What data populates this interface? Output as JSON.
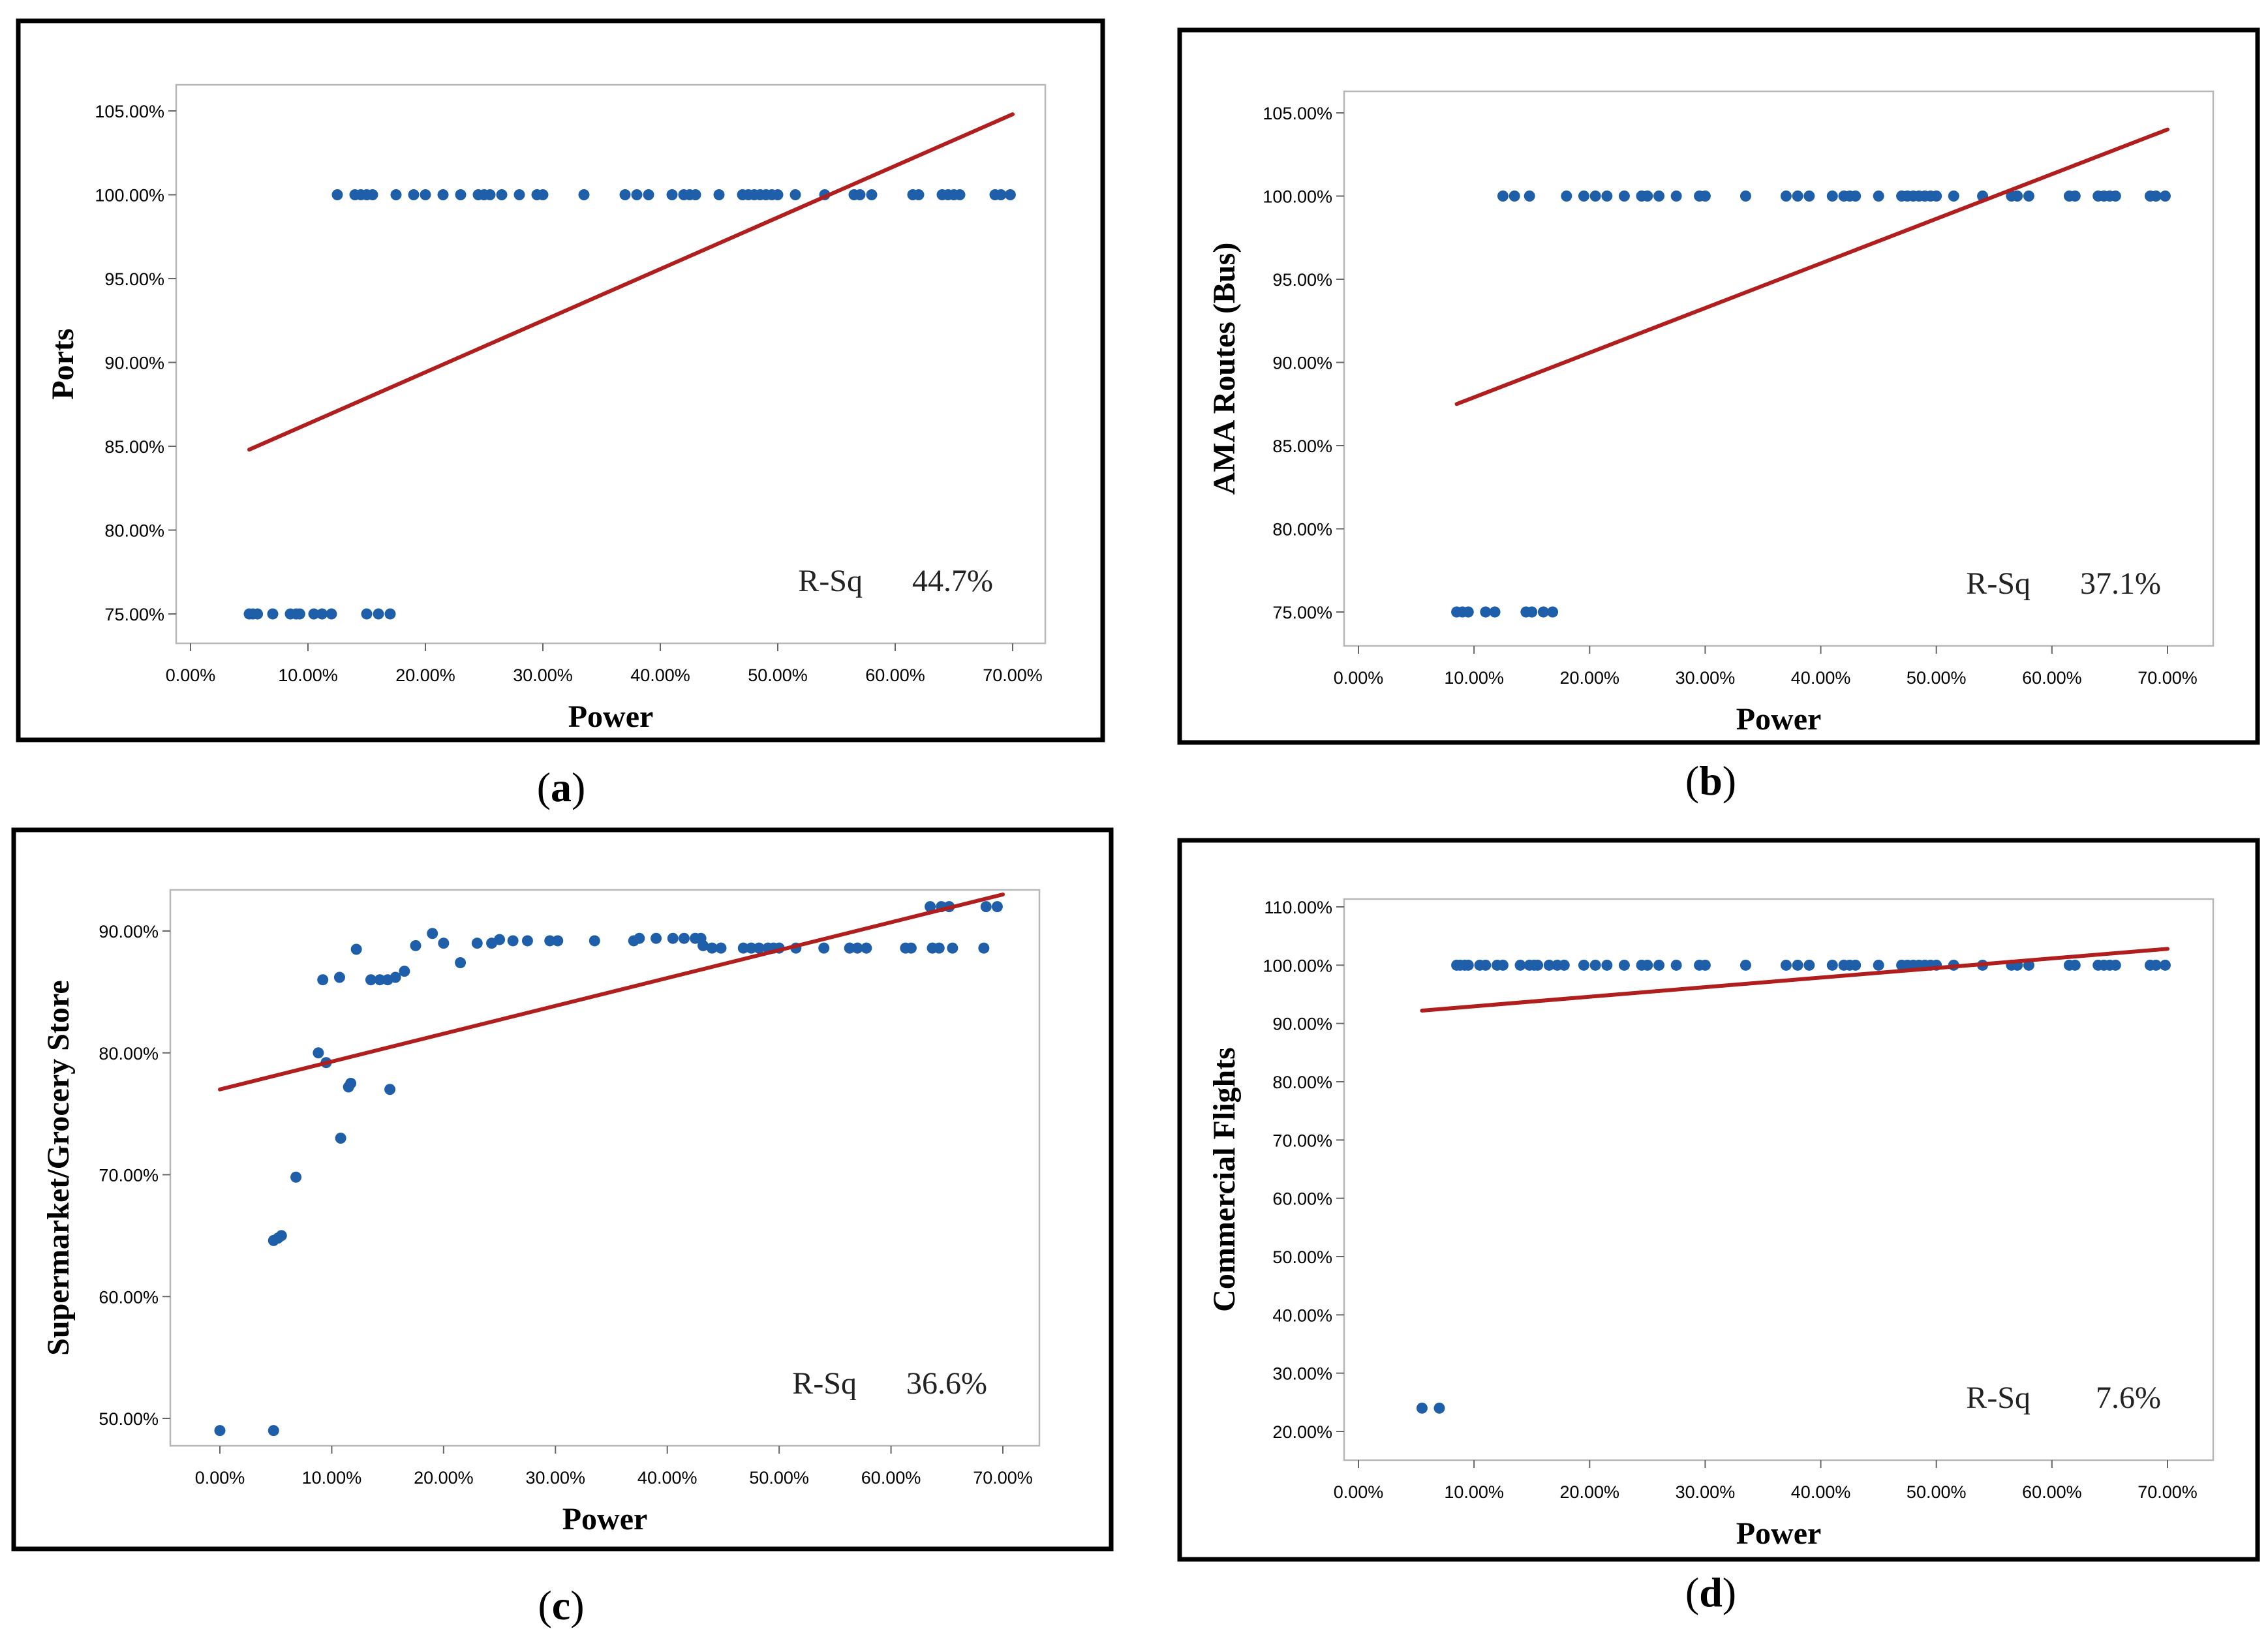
{
  "figure": {
    "captions": [
      "(a)",
      "(b)",
      "(c)",
      "(d)"
    ],
    "caption_letters": [
      "a",
      "b",
      "c",
      "d"
    ]
  },
  "chart_data": [
    {
      "type": "scatter",
      "panel": "a",
      "xlabel": "Power",
      "ylabel": "Ports",
      "annotation_label": "R-Sq",
      "annotation_value": "44.7%",
      "xlim": [
        0,
        0.7
      ],
      "ylim": [
        0.75,
        1.05
      ],
      "xticks": [
        0,
        0.1,
        0.2,
        0.3,
        0.4,
        0.5,
        0.6,
        0.7
      ],
      "xtick_labels": [
        "0.00%",
        "10.00%",
        "20.00%",
        "30.00%",
        "40.00%",
        "50.00%",
        "60.00%",
        "70.00%"
      ],
      "yticks": [
        0.75,
        0.8,
        0.85,
        0.9,
        0.95,
        1.0,
        1.05
      ],
      "ytick_labels": [
        "75.00%",
        "80.00%",
        "85.00%",
        "90.00%",
        "95.00%",
        "100.00%",
        "105.00%"
      ],
      "fit_line": {
        "x": [
          0.05,
          0.7
        ],
        "y": [
          0.848,
          1.048
        ]
      },
      "points": [
        [
          0.05,
          0.75
        ],
        [
          0.053,
          0.75
        ],
        [
          0.057,
          0.75
        ],
        [
          0.07,
          0.75
        ],
        [
          0.085,
          0.75
        ],
        [
          0.09,
          0.75
        ],
        [
          0.093,
          0.75
        ],
        [
          0.105,
          0.75
        ],
        [
          0.112,
          0.75
        ],
        [
          0.12,
          0.75
        ],
        [
          0.15,
          0.75
        ],
        [
          0.16,
          0.75
        ],
        [
          0.17,
          0.75
        ],
        [
          0.125,
          1.0
        ],
        [
          0.14,
          1.0
        ],
        [
          0.145,
          1.0
        ],
        [
          0.15,
          1.0
        ],
        [
          0.155,
          1.0
        ],
        [
          0.175,
          1.0
        ],
        [
          0.19,
          1.0
        ],
        [
          0.2,
          1.0
        ],
        [
          0.215,
          1.0
        ],
        [
          0.23,
          1.0
        ],
        [
          0.245,
          1.0
        ],
        [
          0.25,
          1.0
        ],
        [
          0.255,
          1.0
        ],
        [
          0.265,
          1.0
        ],
        [
          0.28,
          1.0
        ],
        [
          0.295,
          1.0
        ],
        [
          0.3,
          1.0
        ],
        [
          0.335,
          1.0
        ],
        [
          0.37,
          1.0
        ],
        [
          0.38,
          1.0
        ],
        [
          0.39,
          1.0
        ],
        [
          0.41,
          1.0
        ],
        [
          0.42,
          1.0
        ],
        [
          0.425,
          1.0
        ],
        [
          0.43,
          1.0
        ],
        [
          0.45,
          1.0
        ],
        [
          0.47,
          1.0
        ],
        [
          0.475,
          1.0
        ],
        [
          0.48,
          1.0
        ],
        [
          0.485,
          1.0
        ],
        [
          0.49,
          1.0
        ],
        [
          0.495,
          1.0
        ],
        [
          0.5,
          1.0
        ],
        [
          0.515,
          1.0
        ],
        [
          0.54,
          1.0
        ],
        [
          0.565,
          1.0
        ],
        [
          0.57,
          1.0
        ],
        [
          0.58,
          1.0
        ],
        [
          0.615,
          1.0
        ],
        [
          0.62,
          1.0
        ],
        [
          0.64,
          1.0
        ],
        [
          0.645,
          1.0
        ],
        [
          0.65,
          1.0
        ],
        [
          0.655,
          1.0
        ],
        [
          0.685,
          1.0
        ],
        [
          0.69,
          1.0
        ],
        [
          0.698,
          1.0
        ]
      ]
    },
    {
      "type": "scatter",
      "panel": "b",
      "xlabel": "Power",
      "ylabel": "AMA Routes (Bus)",
      "annotation_label": "R-Sq",
      "annotation_value": "37.1%",
      "xlim": [
        0,
        0.7
      ],
      "ylim": [
        0.75,
        1.05
      ],
      "xticks": [
        0,
        0.1,
        0.2,
        0.3,
        0.4,
        0.5,
        0.6,
        0.7
      ],
      "xtick_labels": [
        "0.00%",
        "10.00%",
        "20.00%",
        "30.00%",
        "40.00%",
        "50.00%",
        "60.00%",
        "70.00%"
      ],
      "yticks": [
        0.75,
        0.8,
        0.85,
        0.9,
        0.95,
        1.0,
        1.05
      ],
      "ytick_labels": [
        "75.00%",
        "80.00%",
        "85.00%",
        "90.00%",
        "95.00%",
        "100.00%",
        "105.00%"
      ],
      "fit_line": {
        "x": [
          0.085,
          0.7
        ],
        "y": [
          0.875,
          1.04
        ]
      },
      "points": [
        [
          0.085,
          0.75
        ],
        [
          0.09,
          0.75
        ],
        [
          0.095,
          0.75
        ],
        [
          0.11,
          0.75
        ],
        [
          0.118,
          0.75
        ],
        [
          0.145,
          0.75
        ],
        [
          0.15,
          0.75
        ],
        [
          0.16,
          0.75
        ],
        [
          0.168,
          0.75
        ],
        [
          0.125,
          1.0
        ],
        [
          0.135,
          1.0
        ],
        [
          0.148,
          1.0
        ],
        [
          0.18,
          1.0
        ],
        [
          0.195,
          1.0
        ],
        [
          0.205,
          1.0
        ],
        [
          0.215,
          1.0
        ],
        [
          0.23,
          1.0
        ],
        [
          0.245,
          1.0
        ],
        [
          0.25,
          1.0
        ],
        [
          0.26,
          1.0
        ],
        [
          0.275,
          1.0
        ],
        [
          0.295,
          1.0
        ],
        [
          0.3,
          1.0
        ],
        [
          0.335,
          1.0
        ],
        [
          0.37,
          1.0
        ],
        [
          0.38,
          1.0
        ],
        [
          0.39,
          1.0
        ],
        [
          0.41,
          1.0
        ],
        [
          0.42,
          1.0
        ],
        [
          0.425,
          1.0
        ],
        [
          0.43,
          1.0
        ],
        [
          0.45,
          1.0
        ],
        [
          0.47,
          1.0
        ],
        [
          0.475,
          1.0
        ],
        [
          0.48,
          1.0
        ],
        [
          0.485,
          1.0
        ],
        [
          0.49,
          1.0
        ],
        [
          0.495,
          1.0
        ],
        [
          0.5,
          1.0
        ],
        [
          0.515,
          1.0
        ],
        [
          0.54,
          1.0
        ],
        [
          0.565,
          1.0
        ],
        [
          0.57,
          1.0
        ],
        [
          0.58,
          1.0
        ],
        [
          0.615,
          1.0
        ],
        [
          0.62,
          1.0
        ],
        [
          0.64,
          1.0
        ],
        [
          0.645,
          1.0
        ],
        [
          0.65,
          1.0
        ],
        [
          0.655,
          1.0
        ],
        [
          0.685,
          1.0
        ],
        [
          0.69,
          1.0
        ],
        [
          0.698,
          1.0
        ]
      ]
    },
    {
      "type": "scatter",
      "panel": "c",
      "xlabel": "Power",
      "ylabel": "Supermarket/Grocery Store",
      "annotation_label": "R-Sq",
      "annotation_value": "36.6%",
      "xlim": [
        0,
        0.7
      ],
      "ylim": [
        0.49,
        0.92
      ],
      "xticks": [
        0,
        0.1,
        0.2,
        0.3,
        0.4,
        0.5,
        0.6,
        0.7
      ],
      "xtick_labels": [
        "0.00%",
        "10.00%",
        "20.00%",
        "30.00%",
        "40.00%",
        "50.00%",
        "60.00%",
        "70.00%"
      ],
      "yticks": [
        0.5,
        0.6,
        0.7,
        0.8,
        0.9
      ],
      "ytick_labels": [
        "50.00%",
        "60.00%",
        "70.00%",
        "80.00%",
        "90.00%"
      ],
      "fit_line": {
        "x": [
          0.0,
          0.7
        ],
        "y": [
          0.77,
          0.93
        ]
      },
      "points": [
        [
          0.0,
          0.49
        ],
        [
          0.048,
          0.49
        ],
        [
          0.048,
          0.646
        ],
        [
          0.052,
          0.648
        ],
        [
          0.055,
          0.65
        ],
        [
          0.068,
          0.698
        ],
        [
          0.088,
          0.8
        ],
        [
          0.092,
          0.86
        ],
        [
          0.095,
          0.792
        ],
        [
          0.107,
          0.862
        ],
        [
          0.108,
          0.73
        ],
        [
          0.115,
          0.772
        ],
        [
          0.117,
          0.775
        ],
        [
          0.122,
          0.885
        ],
        [
          0.135,
          0.86
        ],
        [
          0.143,
          0.86
        ],
        [
          0.15,
          0.86
        ],
        [
          0.152,
          0.77
        ],
        [
          0.157,
          0.862
        ],
        [
          0.165,
          0.867
        ],
        [
          0.175,
          0.888
        ],
        [
          0.19,
          0.898
        ],
        [
          0.2,
          0.89
        ],
        [
          0.215,
          0.874
        ],
        [
          0.23,
          0.89
        ],
        [
          0.243,
          0.89
        ],
        [
          0.25,
          0.893
        ],
        [
          0.262,
          0.892
        ],
        [
          0.275,
          0.892
        ],
        [
          0.295,
          0.892
        ],
        [
          0.302,
          0.892
        ],
        [
          0.335,
          0.892
        ],
        [
          0.37,
          0.892
        ],
        [
          0.375,
          0.894
        ],
        [
          0.39,
          0.894
        ],
        [
          0.405,
          0.894
        ],
        [
          0.415,
          0.894
        ],
        [
          0.425,
          0.894
        ],
        [
          0.43,
          0.894
        ],
        [
          0.432,
          0.888
        ],
        [
          0.44,
          0.886
        ],
        [
          0.448,
          0.886
        ],
        [
          0.468,
          0.886
        ],
        [
          0.475,
          0.886
        ],
        [
          0.482,
          0.886
        ],
        [
          0.49,
          0.886
        ],
        [
          0.495,
          0.886
        ],
        [
          0.5,
          0.886
        ],
        [
          0.515,
          0.886
        ],
        [
          0.54,
          0.886
        ],
        [
          0.563,
          0.886
        ],
        [
          0.57,
          0.886
        ],
        [
          0.578,
          0.886
        ],
        [
          0.613,
          0.886
        ],
        [
          0.618,
          0.886
        ],
        [
          0.635,
          0.92
        ],
        [
          0.637,
          0.886
        ],
        [
          0.643,
          0.886
        ],
        [
          0.645,
          0.92
        ],
        [
          0.652,
          0.92
        ],
        [
          0.655,
          0.886
        ],
        [
          0.683,
          0.886
        ],
        [
          0.685,
          0.92
        ],
        [
          0.695,
          0.92
        ]
      ]
    },
    {
      "type": "scatter",
      "panel": "d",
      "xlabel": "Power",
      "ylabel": "Commercial Flights",
      "annotation_label": "R-Sq",
      "annotation_value": "7.6%",
      "xlim": [
        0,
        0.7
      ],
      "ylim": [
        0.2,
        1.1
      ],
      "xticks": [
        0,
        0.1,
        0.2,
        0.3,
        0.4,
        0.5,
        0.6,
        0.7
      ],
      "xtick_labels": [
        "0.00%",
        "10.00%",
        "20.00%",
        "30.00%",
        "40.00%",
        "50.00%",
        "60.00%",
        "70.00%"
      ],
      "yticks": [
        0.2,
        0.3,
        0.4,
        0.5,
        0.6,
        0.7,
        0.8,
        0.9,
        1.0,
        1.1
      ],
      "ytick_labels": [
        "20.00%",
        "30.00%",
        "40.00%",
        "50.00%",
        "60.00%",
        "70.00%",
        "80.00%",
        "90.00%",
        "100.00%",
        "110.00%"
      ],
      "fit_line": {
        "x": [
          0.055,
          0.7
        ],
        "y": [
          0.922,
          1.028
        ]
      },
      "points": [
        [
          0.055,
          0.24
        ],
        [
          0.07,
          0.24
        ],
        [
          0.085,
          1.0
        ],
        [
          0.088,
          1.0
        ],
        [
          0.092,
          1.0
        ],
        [
          0.095,
          1.0
        ],
        [
          0.105,
          1.0
        ],
        [
          0.11,
          1.0
        ],
        [
          0.12,
          1.0
        ],
        [
          0.125,
          1.0
        ],
        [
          0.14,
          1.0
        ],
        [
          0.148,
          1.0
        ],
        [
          0.152,
          1.0
        ],
        [
          0.155,
          1.0
        ],
        [
          0.165,
          1.0
        ],
        [
          0.172,
          1.0
        ],
        [
          0.178,
          1.0
        ],
        [
          0.195,
          1.0
        ],
        [
          0.205,
          1.0
        ],
        [
          0.215,
          1.0
        ],
        [
          0.23,
          1.0
        ],
        [
          0.245,
          1.0
        ],
        [
          0.25,
          1.0
        ],
        [
          0.26,
          1.0
        ],
        [
          0.275,
          1.0
        ],
        [
          0.295,
          1.0
        ],
        [
          0.3,
          1.0
        ],
        [
          0.335,
          1.0
        ],
        [
          0.37,
          1.0
        ],
        [
          0.38,
          1.0
        ],
        [
          0.39,
          1.0
        ],
        [
          0.41,
          1.0
        ],
        [
          0.42,
          1.0
        ],
        [
          0.425,
          1.0
        ],
        [
          0.43,
          1.0
        ],
        [
          0.45,
          1.0
        ],
        [
          0.47,
          1.0
        ],
        [
          0.475,
          1.0
        ],
        [
          0.48,
          1.0
        ],
        [
          0.485,
          1.0
        ],
        [
          0.49,
          1.0
        ],
        [
          0.495,
          1.0
        ],
        [
          0.5,
          1.0
        ],
        [
          0.515,
          1.0
        ],
        [
          0.54,
          1.0
        ],
        [
          0.565,
          1.0
        ],
        [
          0.57,
          1.0
        ],
        [
          0.58,
          1.0
        ],
        [
          0.615,
          1.0
        ],
        [
          0.62,
          1.0
        ],
        [
          0.64,
          1.0
        ],
        [
          0.645,
          1.0
        ],
        [
          0.65,
          1.0
        ],
        [
          0.655,
          1.0
        ],
        [
          0.685,
          1.0
        ],
        [
          0.69,
          1.0
        ],
        [
          0.698,
          1.0
        ]
      ]
    }
  ]
}
